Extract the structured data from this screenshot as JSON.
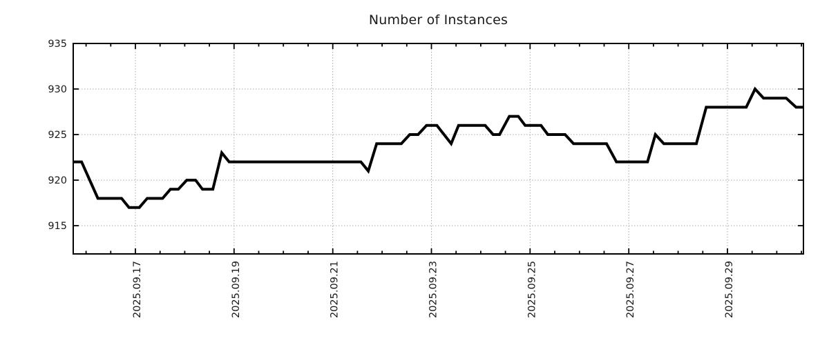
{
  "chart_data": {
    "type": "line",
    "title": "Number of Instances",
    "series_name": "instances",
    "legend": "none",
    "grid": true,
    "x_axis": {
      "label": "",
      "unit": "day of September 2025 (fractional)",
      "lim": [
        15.74,
        30.54
      ],
      "major_tick_days": [
        17,
        19,
        21,
        23,
        25,
        27,
        29
      ],
      "major_tick_labels": [
        "2025.09.17",
        "2025.09.19",
        "2025.09.21",
        "2025.09.23",
        "2025.09.25",
        "2025.09.27",
        "2025.09.29"
      ],
      "minor_tick_step": 0.5
    },
    "y_axis": {
      "label": "",
      "lim": [
        911.9,
        935
      ],
      "major_ticks": [
        935,
        930,
        925,
        920,
        915
      ],
      "major_tick_labels": [
        "935",
        "930",
        "925",
        "920",
        "915"
      ]
    },
    "points": [
      [
        15.74,
        922
      ],
      [
        15.91,
        922
      ],
      [
        16.24,
        918
      ],
      [
        16.72,
        918
      ],
      [
        16.87,
        917
      ],
      [
        17.08,
        917
      ],
      [
        17.24,
        918
      ],
      [
        17.55,
        918
      ],
      [
        17.71,
        919
      ],
      [
        17.87,
        919
      ],
      [
        18.04,
        920
      ],
      [
        18.22,
        920
      ],
      [
        18.36,
        919
      ],
      [
        18.57,
        919
      ],
      [
        18.75,
        923
      ],
      [
        18.9,
        922
      ],
      [
        21.57,
        922
      ],
      [
        21.72,
        921
      ],
      [
        21.89,
        924
      ],
      [
        22.39,
        924
      ],
      [
        22.56,
        925
      ],
      [
        22.73,
        925
      ],
      [
        22.9,
        926
      ],
      [
        23.11,
        926
      ],
      [
        23.4,
        924
      ],
      [
        23.55,
        926
      ],
      [
        24.09,
        926
      ],
      [
        24.25,
        925
      ],
      [
        24.38,
        925
      ],
      [
        24.58,
        927
      ],
      [
        24.76,
        927
      ],
      [
        24.9,
        926
      ],
      [
        25.22,
        926
      ],
      [
        25.36,
        925
      ],
      [
        25.71,
        925
      ],
      [
        25.88,
        924
      ],
      [
        26.55,
        924
      ],
      [
        26.75,
        922
      ],
      [
        27.38,
        922
      ],
      [
        27.54,
        925
      ],
      [
        27.71,
        924
      ],
      [
        28.37,
        924
      ],
      [
        28.57,
        928
      ],
      [
        29.38,
        928
      ],
      [
        29.56,
        930
      ],
      [
        29.73,
        929
      ],
      [
        30.19,
        929
      ],
      [
        30.39,
        928
      ],
      [
        30.54,
        928
      ]
    ],
    "colors": {
      "line": "#000000",
      "grid": "#a8a8a8",
      "axis": "#000000",
      "text": "#1a1a1a"
    }
  }
}
